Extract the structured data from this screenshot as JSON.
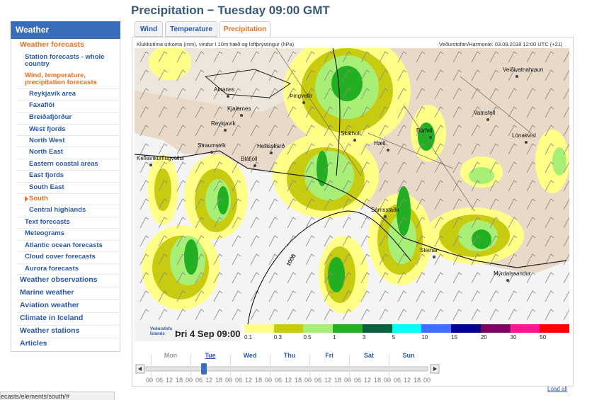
{
  "page_title": "Precipitation − Tuesday 09:00 GMT",
  "sidebar": {
    "header": "Weather",
    "items": [
      "Weather forecasts",
      "Station forecasts - whole country",
      "Wind, temperature, precipitation forecasts",
      "Reykjavík area",
      "Faxaflói",
      "Breiðafjörður",
      "West fjords",
      "North West",
      "North East",
      "Eastern coastal areas",
      "East fjords",
      "South East",
      "South",
      "Central highlands",
      "Text forecasts",
      "Meteograms",
      "Atlantic ocean forecasts",
      "Cloud cover forecasts",
      "Aurora forecasts",
      "Weather observations",
      "Marine weather",
      "Aviation weather",
      "Climate in Iceland",
      "Weather stations",
      "Articles"
    ]
  },
  "tabs": [
    "Wind",
    "Temperature",
    "Precipitation"
  ],
  "map": {
    "caption_left": "Klukkutíma úrkoma (mm), vindur í 10m hæð og loftþrýstingur (hPa)",
    "caption_right": "Veðurstofan/Harmonie: 03.09.2018 12:00 UTC (+21)",
    "places": [
      "Akranes",
      "Þingvellir",
      "Kjalarnes",
      "Reykjavík",
      "Skálholt",
      "Búrfell",
      "Lónakvísl",
      "Straumsvík",
      "Hellisskarð",
      "Hæll",
      "Keflavíkurflugvöllur",
      "Bláfjöll",
      "Sámsstaðir",
      "Steinar",
      "Mýrdalssandur",
      "Veiðivatnahraun",
      "Vatnsfell"
    ],
    "isobar_label": "1006",
    "logo_line1": "Veðurstofa",
    "logo_line2": "Íslands",
    "time": "Þri 4 Sep 09:00"
  },
  "legend": {
    "colors": [
      "#ffff88",
      "#c8cc10",
      "#a8ef78",
      "#22b022",
      "#0b5e3e",
      "#00ffff",
      "#4070ff",
      "#000088",
      "#7f0060",
      "#ff1493",
      "#ff0000"
    ],
    "labels": [
      0.1,
      0.3,
      0.5,
      1,
      3,
      5,
      10,
      15,
      20,
      30,
      50
    ]
  },
  "timeline": {
    "days": [
      "Mon",
      "Tue",
      "Wed",
      "Thu",
      "Fri",
      "Sat",
      "Sun"
    ],
    "hours": [
      "00",
      "06",
      "12",
      "18",
      "00",
      "06",
      "12",
      "18",
      "00",
      "06",
      "12",
      "18",
      "00",
      "06",
      "12",
      "18",
      "00",
      "06",
      "12",
      "18",
      "00",
      "06",
      "12",
      "18",
      "00",
      "06",
      "12",
      "18",
      "00"
    ]
  },
  "load_all": "Load all",
  "status_bar": "ecasts/elements/south/#"
}
